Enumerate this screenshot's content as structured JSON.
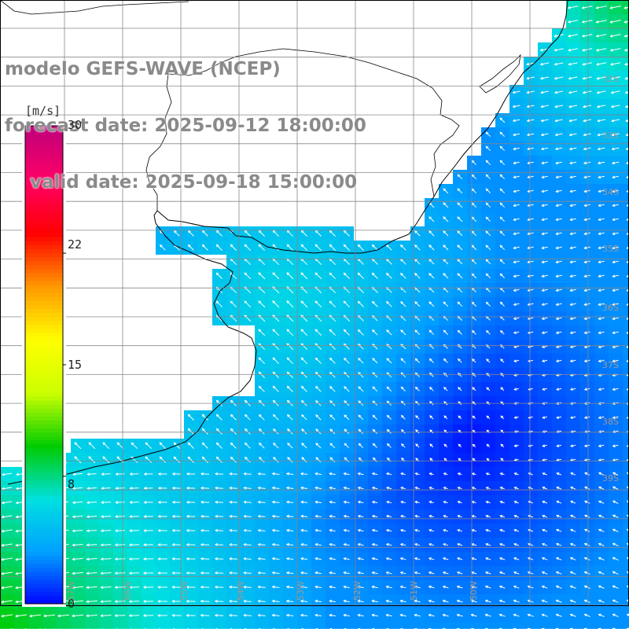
{
  "title": {
    "line1": "modelo GEFS-WAVE (NCEP)",
    "line2": "forecast date: 2025-09-12 18:00:00",
    "line3": "    valid date: 2025-09-18 15:00:00"
  },
  "colorbar": {
    "unit": "[m/s]",
    "ticks": [
      "30",
      "22",
      "15",
      "8",
      "0"
    ],
    "tick_values": [
      30,
      22,
      15,
      8,
      0
    ],
    "max_value": 30,
    "colors": [
      "#0000ff",
      "#00a0ff",
      "#00e0e0",
      "#00cc00",
      "#ccff00",
      "#ffff00",
      "#ff9900",
      "#ff0000",
      "#ff0066",
      "#c0007a"
    ]
  },
  "lat_labels": [
    "32S",
    "33S",
    "34S",
    "35S",
    "36S",
    "37S",
    "38S",
    "39S"
  ],
  "lon_labels": [
    "57W",
    "56W",
    "55W",
    "54W",
    "53W",
    "52W",
    "51W",
    "50W"
  ],
  "colors": {
    "land": "#ffffff",
    "coastline": "#000000",
    "grid": "#888888",
    "arrow": "#ffffff",
    "title_text": "#8a8a8a"
  }
}
